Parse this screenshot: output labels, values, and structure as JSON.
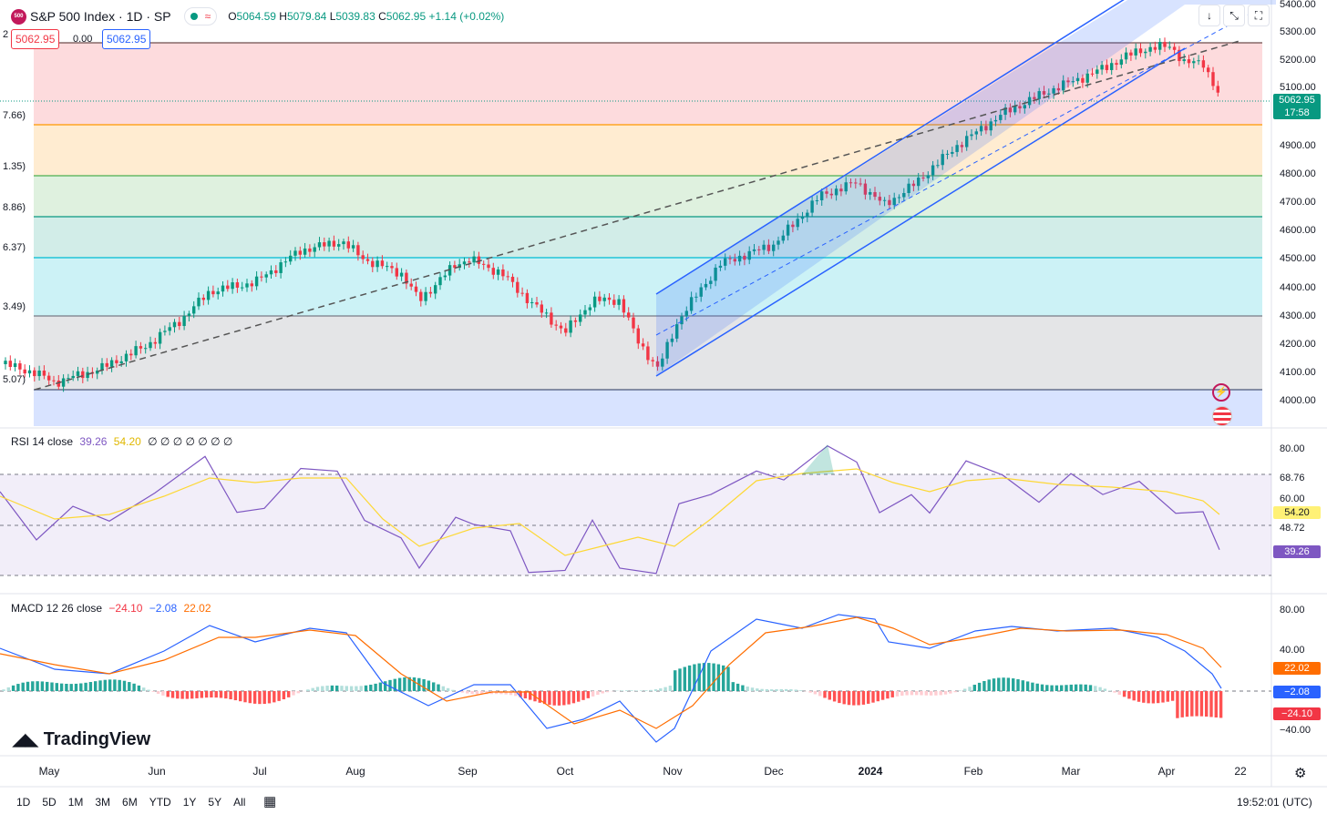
{
  "header": {
    "logo_text": "500",
    "symbol": "S&P 500 Index · 1D · SP",
    "ohlc": {
      "o_label": "O",
      "o": "5064.59",
      "h_label": "H",
      "h": "5079.84",
      "l_label": "L",
      "l": "5039.83",
      "c_label": "C",
      "c": "5062.95",
      "change": "+1.14 (+0.02%)"
    },
    "bid": "5062.95",
    "spread": "0.00",
    "ask": "5062.95",
    "edge_digit": "2"
  },
  "toolbar": {
    "down_icon": "↓",
    "collapse_icon": "⤡",
    "expand_icon": "⛶"
  },
  "fib_labels": [
    "7.66)",
    "1.35)",
    "8.86)",
    "6.37)",
    "3.49)",
    "5.07)"
  ],
  "price_axis": [
    "5400.00",
    "5300.00",
    "5200.00",
    "5100.00",
    "4900.00",
    "4800.00",
    "4700.00",
    "4600.00",
    "4500.00",
    "4400.00",
    "4300.00",
    "4200.00",
    "4100.00",
    "4000.00"
  ],
  "last_price": {
    "value": "5062.95",
    "countdown": "17:58",
    "color": "#089981"
  },
  "rsi": {
    "label": "RSI 14 close",
    "value": "39.26",
    "ma": "54.20",
    "extra": "∅ ∅ ∅ ∅ ∅ ∅ ∅",
    "axis": [
      "80.00",
      "68.76",
      "60.00",
      "48.72"
    ],
    "tag_ma": "54.20",
    "tag_value": "39.26",
    "color": "#7e57c2",
    "ma_color": "#fdd835"
  },
  "macd": {
    "label": "MACD 12 26 close",
    "hist": "−24.10",
    "macd": "−2.08",
    "signal": "22.02",
    "axis": [
      "80.00",
      "40.00",
      "−40.00"
    ],
    "tag_signal": "22.02",
    "tag_macd": "−2.08",
    "tag_hist": "−24.10",
    "macd_color": "#2962ff",
    "signal_color": "#ff6d00"
  },
  "x_axis": [
    "May",
    "Jun",
    "Jul",
    "Aug",
    "Sep",
    "Oct",
    "Nov",
    "Dec",
    "2024",
    "Feb",
    "Mar",
    "Apr",
    "22"
  ],
  "timeframes": [
    "1D",
    "5D",
    "1M",
    "3M",
    "6M",
    "YTD",
    "1Y",
    "5Y",
    "All"
  ],
  "time": "19:52:01 (UTC)",
  "brand": "TradingView",
  "colors": {
    "up": "#089981",
    "down": "#f23645",
    "channel": "#2962ff"
  }
}
